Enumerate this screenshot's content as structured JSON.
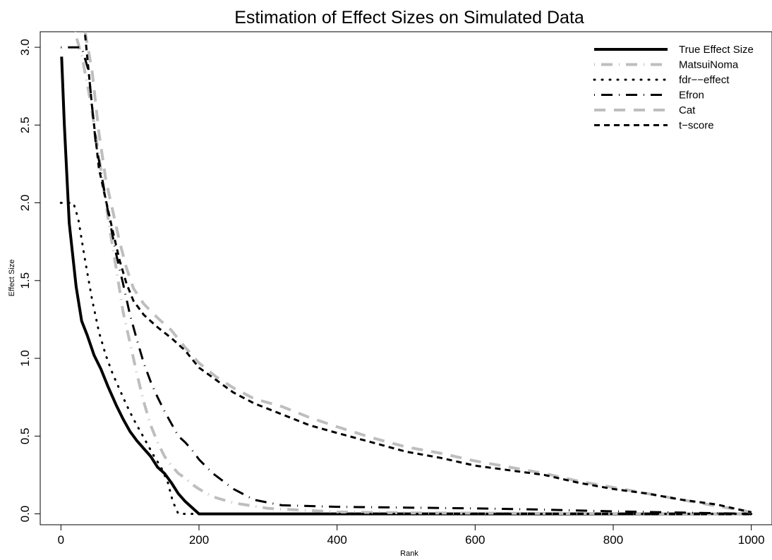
{
  "chart_data": {
    "type": "line",
    "title": "Estimation of Effect Sizes on Simulated Data",
    "xlabel": "Rank",
    "ylabel": "Effect Size",
    "xlim": [
      -30,
      1030
    ],
    "ylim": [
      -0.07,
      3.1
    ],
    "xticks": [
      0,
      200,
      400,
      600,
      800,
      1000
    ],
    "yticks": [
      0.0,
      0.5,
      1.0,
      1.5,
      2.0,
      2.5,
      3.0
    ],
    "xtick_labels": [
      "0",
      "200",
      "400",
      "600",
      "800",
      "1000"
    ],
    "ytick_labels": [
      "0.0",
      "0.5",
      "1.0",
      "1.5",
      "2.0",
      "2.5",
      "3.0"
    ],
    "grid": false,
    "legend_position": "top-right",
    "series": [
      {
        "name": "True Effect Size",
        "color": "#000000",
        "style": "solid",
        "width": 4,
        "points": [
          [
            1,
            2.94
          ],
          [
            5,
            2.5
          ],
          [
            12,
            1.87
          ],
          [
            22,
            1.46
          ],
          [
            30,
            1.24
          ],
          [
            38,
            1.15
          ],
          [
            48,
            1.02
          ],
          [
            58,
            0.93
          ],
          [
            68,
            0.82
          ],
          [
            80,
            0.7
          ],
          [
            90,
            0.61
          ],
          [
            100,
            0.53
          ],
          [
            110,
            0.47
          ],
          [
            120,
            0.42
          ],
          [
            130,
            0.37
          ],
          [
            140,
            0.3
          ],
          [
            150,
            0.26
          ],
          [
            160,
            0.2
          ],
          [
            170,
            0.13
          ],
          [
            180,
            0.08
          ],
          [
            190,
            0.04
          ],
          [
            200,
            0.0
          ],
          [
            500,
            0.0
          ],
          [
            1000,
            0.0
          ]
        ]
      },
      {
        "name": "MatsuiNoma",
        "color": "#bebebe",
        "style": "dashdot",
        "width": 4,
        "points": [
          [
            20,
            3.1
          ],
          [
            30,
            2.95
          ],
          [
            40,
            2.72
          ],
          [
            50,
            2.45
          ],
          [
            60,
            2.15
          ],
          [
            70,
            1.85
          ],
          [
            80,
            1.58
          ],
          [
            90,
            1.3
          ],
          [
            100,
            1.1
          ],
          [
            110,
            0.9
          ],
          [
            120,
            0.72
          ],
          [
            130,
            0.57
          ],
          [
            140,
            0.46
          ],
          [
            150,
            0.37
          ],
          [
            160,
            0.31
          ],
          [
            170,
            0.26
          ],
          [
            180,
            0.23
          ],
          [
            190,
            0.19
          ],
          [
            200,
            0.16
          ],
          [
            220,
            0.11
          ],
          [
            250,
            0.07
          ],
          [
            300,
            0.035
          ],
          [
            400,
            0.012
          ],
          [
            500,
            0.006
          ],
          [
            700,
            0.003
          ],
          [
            1000,
            0.0
          ]
        ]
      },
      {
        "name": "fdr−−effect",
        "color": "#000000",
        "style": "dotted",
        "width": 3,
        "points": [
          [
            0,
            2.0
          ],
          [
            18,
            2.0
          ],
          [
            25,
            1.9
          ],
          [
            35,
            1.63
          ],
          [
            45,
            1.38
          ],
          [
            55,
            1.17
          ],
          [
            65,
            1.02
          ],
          [
            75,
            0.9
          ],
          [
            85,
            0.8
          ],
          [
            95,
            0.7
          ],
          [
            105,
            0.61
          ],
          [
            115,
            0.53
          ],
          [
            125,
            0.45
          ],
          [
            135,
            0.37
          ],
          [
            145,
            0.3
          ],
          [
            155,
            0.2
          ],
          [
            162,
            0.08
          ],
          [
            170,
            0.0
          ],
          [
            1000,
            0.0
          ]
        ]
      },
      {
        "name": "Efron",
        "color": "#000000",
        "style": "dashdot",
        "width": 3,
        "points": [
          [
            0,
            3.0
          ],
          [
            30,
            3.0
          ],
          [
            40,
            2.85
          ],
          [
            50,
            2.4
          ],
          [
            60,
            2.15
          ],
          [
            70,
            1.9
          ],
          [
            80,
            1.67
          ],
          [
            90,
            1.48
          ],
          [
            100,
            1.28
          ],
          [
            110,
            1.12
          ],
          [
            120,
            0.97
          ],
          [
            130,
            0.85
          ],
          [
            140,
            0.75
          ],
          [
            150,
            0.66
          ],
          [
            160,
            0.58
          ],
          [
            170,
            0.5
          ],
          [
            180,
            0.46
          ],
          [
            190,
            0.41
          ],
          [
            200,
            0.35
          ],
          [
            220,
            0.26
          ],
          [
            250,
            0.16
          ],
          [
            280,
            0.09
          ],
          [
            320,
            0.055
          ],
          [
            400,
            0.045
          ],
          [
            500,
            0.04
          ],
          [
            600,
            0.035
          ],
          [
            700,
            0.027
          ],
          [
            800,
            0.016
          ],
          [
            900,
            0.008
          ],
          [
            1000,
            0.0
          ]
        ]
      },
      {
        "name": "Cat",
        "color": "#bebebe",
        "style": "dashed",
        "width": 4,
        "points": [
          [
            35,
            3.1
          ],
          [
            45,
            2.85
          ],
          [
            55,
            2.45
          ],
          [
            65,
            2.15
          ],
          [
            75,
            1.95
          ],
          [
            85,
            1.75
          ],
          [
            95,
            1.58
          ],
          [
            105,
            1.45
          ],
          [
            120,
            1.35
          ],
          [
            140,
            1.26
          ],
          [
            160,
            1.18
          ],
          [
            180,
            1.07
          ],
          [
            200,
            0.97
          ],
          [
            225,
            0.88
          ],
          [
            250,
            0.81
          ],
          [
            280,
            0.74
          ],
          [
            320,
            0.69
          ],
          [
            360,
            0.62
          ],
          [
            400,
            0.56
          ],
          [
            450,
            0.49
          ],
          [
            500,
            0.43
          ],
          [
            550,
            0.39
          ],
          [
            600,
            0.34
          ],
          [
            650,
            0.3
          ],
          [
            700,
            0.26
          ],
          [
            750,
            0.21
          ],
          [
            800,
            0.17
          ],
          [
            850,
            0.13
          ],
          [
            900,
            0.09
          ],
          [
            950,
            0.05
          ],
          [
            990,
            0.02
          ],
          [
            1000,
            0.01
          ]
        ]
      },
      {
        "name": "t−score",
        "color": "#000000",
        "style": "shortdash",
        "width": 3,
        "points": [
          [
            35,
            3.08
          ],
          [
            45,
            2.62
          ],
          [
            55,
            2.22
          ],
          [
            65,
            2.02
          ],
          [
            75,
            1.82
          ],
          [
            85,
            1.63
          ],
          [
            95,
            1.48
          ],
          [
            105,
            1.37
          ],
          [
            120,
            1.28
          ],
          [
            140,
            1.2
          ],
          [
            160,
            1.13
          ],
          [
            180,
            1.05
          ],
          [
            200,
            0.94
          ],
          [
            225,
            0.86
          ],
          [
            250,
            0.78
          ],
          [
            280,
            0.71
          ],
          [
            320,
            0.64
          ],
          [
            360,
            0.57
          ],
          [
            400,
            0.52
          ],
          [
            450,
            0.46
          ],
          [
            500,
            0.4
          ],
          [
            550,
            0.36
          ],
          [
            600,
            0.31
          ],
          [
            650,
            0.28
          ],
          [
            700,
            0.25
          ],
          [
            750,
            0.2
          ],
          [
            800,
            0.16
          ],
          [
            850,
            0.13
          ],
          [
            900,
            0.09
          ],
          [
            950,
            0.06
          ],
          [
            1000,
            0.01
          ]
        ]
      }
    ]
  }
}
